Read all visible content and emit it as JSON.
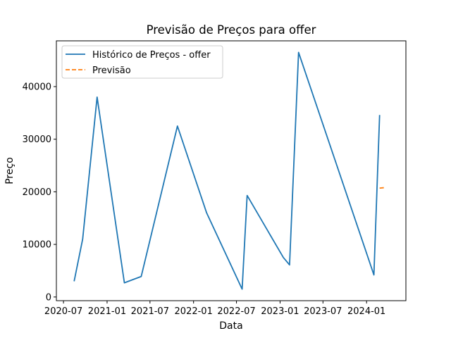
{
  "chart_data": {
    "type": "line",
    "title": "Previsão de Preços para offer",
    "xlabel": "Data",
    "ylabel": "Preço",
    "xlim": [
      "2020-06-01",
      "2024-06-15"
    ],
    "ylim": [
      -700,
      48700
    ],
    "x_ticks": [
      "2020-07-01",
      "2021-01-01",
      "2021-07-01",
      "2022-01-01",
      "2022-07-01",
      "2023-01-01",
      "2023-07-01",
      "2024-01-01"
    ],
    "x_tick_labels": [
      "2020-07",
      "2021-01",
      "2021-07",
      "2022-01",
      "2022-07",
      "2023-01",
      "2023-07",
      "2024-01"
    ],
    "y_ticks": [
      0,
      10000,
      20000,
      30000,
      40000
    ],
    "y_tick_labels": [
      "0",
      "10000",
      "20000",
      "30000",
      "40000"
    ],
    "legend_position": "top-left",
    "grid": false,
    "series": [
      {
        "name": "Histórico de Preços - offer",
        "color": "#1f77b4",
        "style": "solid",
        "x": [
          "2020-08-15",
          "2020-09-20",
          "2020-11-20",
          "2021-03-15",
          "2021-05-25",
          "2021-10-25",
          "2022-02-25",
          "2022-07-25",
          "2022-08-15",
          "2023-01-15",
          "2023-02-10",
          "2023-03-20",
          "2024-02-01",
          "2024-02-25"
        ],
        "y": [
          3000,
          11000,
          38000,
          2700,
          3900,
          32500,
          16000,
          1500,
          19300,
          7500,
          6100,
          46500,
          4200,
          34600
        ]
      },
      {
        "name": "Previsão",
        "color": "#ff7f0e",
        "style": "dashed",
        "x": [
          "2024-02-25",
          "2024-03-20"
        ],
        "y": [
          20700,
          20800
        ]
      }
    ]
  }
}
